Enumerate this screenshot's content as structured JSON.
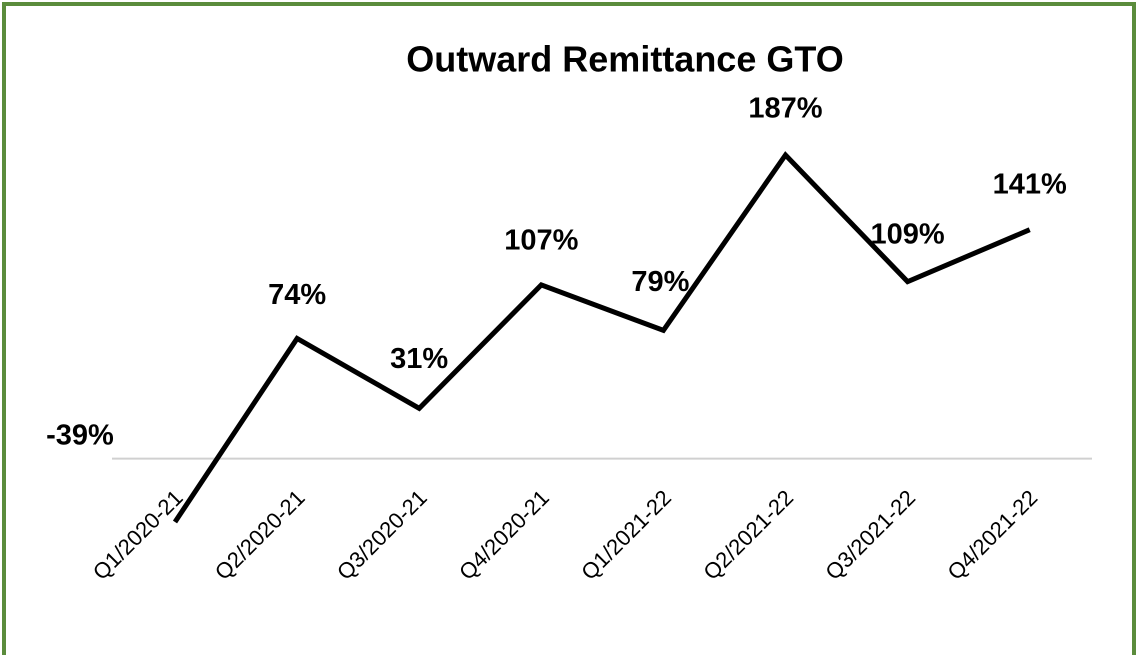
{
  "chart_data": {
    "type": "line",
    "title": "Outward Remittance GTO",
    "categories": [
      "Q1/2020-21",
      "Q2/2020-21",
      "Q3/2020-21",
      "Q4/2020-21",
      "Q1/2021-22",
      "Q2/2021-22",
      "Q3/2021-22",
      "Q4/2021-22"
    ],
    "values": [
      -39,
      74,
      31,
      107,
      79,
      187,
      109,
      141
    ],
    "value_labels": [
      "-39%",
      "74%",
      "31%",
      "107%",
      "79%",
      "187%",
      "109%",
      "141%"
    ],
    "color": "#000000"
  }
}
